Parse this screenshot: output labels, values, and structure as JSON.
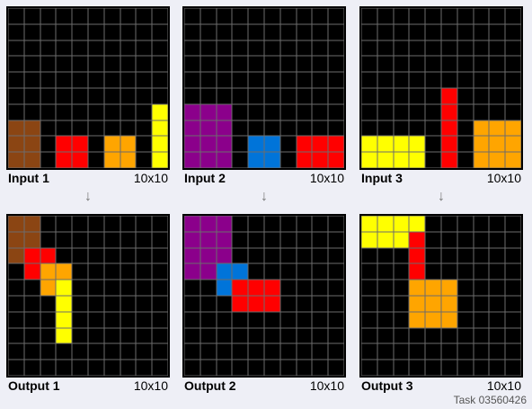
{
  "palette": {
    "0": "#000000",
    "1": "#8b4513",
    "2": "#ff0000",
    "3": "#ffa500",
    "4": "#ffff00",
    "5": "#8b008b",
    "6": "#0074d9"
  },
  "arrow_glyph": "↓",
  "task_label": "Task 03560426",
  "panels": [
    {
      "label": "Input 1",
      "size": "10x10",
      "grid": [
        [
          0,
          0,
          0,
          0,
          0,
          0,
          0,
          0,
          0,
          0
        ],
        [
          0,
          0,
          0,
          0,
          0,
          0,
          0,
          0,
          0,
          0
        ],
        [
          0,
          0,
          0,
          0,
          0,
          0,
          0,
          0,
          0,
          0
        ],
        [
          0,
          0,
          0,
          0,
          0,
          0,
          0,
          0,
          0,
          0
        ],
        [
          0,
          0,
          0,
          0,
          0,
          0,
          0,
          0,
          0,
          0
        ],
        [
          0,
          0,
          0,
          0,
          0,
          0,
          0,
          0,
          0,
          0
        ],
        [
          0,
          0,
          0,
          0,
          0,
          0,
          0,
          0,
          0,
          4
        ],
        [
          1,
          1,
          0,
          0,
          0,
          0,
          0,
          0,
          0,
          4
        ],
        [
          1,
          1,
          0,
          2,
          2,
          0,
          3,
          3,
          0,
          4
        ],
        [
          1,
          1,
          0,
          2,
          2,
          0,
          3,
          3,
          0,
          4
        ]
      ]
    },
    {
      "label": "Input 2",
      "size": "10x10",
      "grid": [
        [
          0,
          0,
          0,
          0,
          0,
          0,
          0,
          0,
          0,
          0
        ],
        [
          0,
          0,
          0,
          0,
          0,
          0,
          0,
          0,
          0,
          0
        ],
        [
          0,
          0,
          0,
          0,
          0,
          0,
          0,
          0,
          0,
          0
        ],
        [
          0,
          0,
          0,
          0,
          0,
          0,
          0,
          0,
          0,
          0
        ],
        [
          0,
          0,
          0,
          0,
          0,
          0,
          0,
          0,
          0,
          0
        ],
        [
          0,
          0,
          0,
          0,
          0,
          0,
          0,
          0,
          0,
          0
        ],
        [
          5,
          5,
          5,
          0,
          0,
          0,
          0,
          0,
          0,
          0
        ],
        [
          5,
          5,
          5,
          0,
          0,
          0,
          0,
          0,
          0,
          0
        ],
        [
          5,
          5,
          5,
          0,
          6,
          6,
          0,
          2,
          2,
          2
        ],
        [
          5,
          5,
          5,
          0,
          6,
          6,
          0,
          2,
          2,
          2
        ]
      ]
    },
    {
      "label": "Input 3",
      "size": "10x10",
      "grid": [
        [
          0,
          0,
          0,
          0,
          0,
          0,
          0,
          0,
          0,
          0
        ],
        [
          0,
          0,
          0,
          0,
          0,
          0,
          0,
          0,
          0,
          0
        ],
        [
          0,
          0,
          0,
          0,
          0,
          0,
          0,
          0,
          0,
          0
        ],
        [
          0,
          0,
          0,
          0,
          0,
          0,
          0,
          0,
          0,
          0
        ],
        [
          0,
          0,
          0,
          0,
          0,
          0,
          0,
          0,
          0,
          0
        ],
        [
          0,
          0,
          0,
          0,
          0,
          2,
          0,
          0,
          0,
          0
        ],
        [
          0,
          0,
          0,
          0,
          0,
          2,
          0,
          0,
          0,
          0
        ],
        [
          0,
          0,
          0,
          0,
          0,
          2,
          0,
          3,
          3,
          3
        ],
        [
          4,
          4,
          4,
          4,
          0,
          2,
          0,
          3,
          3,
          3
        ],
        [
          4,
          4,
          4,
          4,
          0,
          2,
          0,
          3,
          3,
          3
        ]
      ]
    },
    {
      "label": "Output 1",
      "size": "10x10",
      "grid": [
        [
          1,
          1,
          0,
          0,
          0,
          0,
          0,
          0,
          0,
          0
        ],
        [
          1,
          1,
          0,
          0,
          0,
          0,
          0,
          0,
          0,
          0
        ],
        [
          1,
          2,
          2,
          0,
          0,
          0,
          0,
          0,
          0,
          0
        ],
        [
          0,
          2,
          3,
          3,
          0,
          0,
          0,
          0,
          0,
          0
        ],
        [
          0,
          0,
          3,
          4,
          0,
          0,
          0,
          0,
          0,
          0
        ],
        [
          0,
          0,
          0,
          4,
          0,
          0,
          0,
          0,
          0,
          0
        ],
        [
          0,
          0,
          0,
          4,
          0,
          0,
          0,
          0,
          0,
          0
        ],
        [
          0,
          0,
          0,
          4,
          0,
          0,
          0,
          0,
          0,
          0
        ],
        [
          0,
          0,
          0,
          0,
          0,
          0,
          0,
          0,
          0,
          0
        ],
        [
          0,
          0,
          0,
          0,
          0,
          0,
          0,
          0,
          0,
          0
        ]
      ]
    },
    {
      "label": "Output 2",
      "size": "10x10",
      "grid": [
        [
          5,
          5,
          5,
          0,
          0,
          0,
          0,
          0,
          0,
          0
        ],
        [
          5,
          5,
          5,
          0,
          0,
          0,
          0,
          0,
          0,
          0
        ],
        [
          5,
          5,
          5,
          0,
          0,
          0,
          0,
          0,
          0,
          0
        ],
        [
          5,
          5,
          6,
          6,
          0,
          0,
          0,
          0,
          0,
          0
        ],
        [
          0,
          0,
          6,
          2,
          2,
          2,
          0,
          0,
          0,
          0
        ],
        [
          0,
          0,
          0,
          2,
          2,
          2,
          0,
          0,
          0,
          0
        ],
        [
          0,
          0,
          0,
          0,
          0,
          0,
          0,
          0,
          0,
          0
        ],
        [
          0,
          0,
          0,
          0,
          0,
          0,
          0,
          0,
          0,
          0
        ],
        [
          0,
          0,
          0,
          0,
          0,
          0,
          0,
          0,
          0,
          0
        ],
        [
          0,
          0,
          0,
          0,
          0,
          0,
          0,
          0,
          0,
          0
        ]
      ]
    },
    {
      "label": "Output 3",
      "size": "10x10",
      "grid": [
        [
          4,
          4,
          4,
          4,
          0,
          0,
          0,
          0,
          0,
          0
        ],
        [
          4,
          4,
          4,
          2,
          0,
          0,
          0,
          0,
          0,
          0
        ],
        [
          0,
          0,
          0,
          2,
          0,
          0,
          0,
          0,
          0,
          0
        ],
        [
          0,
          0,
          0,
          2,
          0,
          0,
          0,
          0,
          0,
          0
        ],
        [
          0,
          0,
          0,
          3,
          3,
          3,
          0,
          0,
          0,
          0
        ],
        [
          0,
          0,
          0,
          3,
          3,
          3,
          0,
          0,
          0,
          0
        ],
        [
          0,
          0,
          0,
          3,
          3,
          3,
          0,
          0,
          0,
          0
        ],
        [
          0,
          0,
          0,
          0,
          0,
          0,
          0,
          0,
          0,
          0
        ],
        [
          0,
          0,
          0,
          0,
          0,
          0,
          0,
          0,
          0,
          0
        ],
        [
          0,
          0,
          0,
          0,
          0,
          0,
          0,
          0,
          0,
          0
        ]
      ]
    }
  ]
}
